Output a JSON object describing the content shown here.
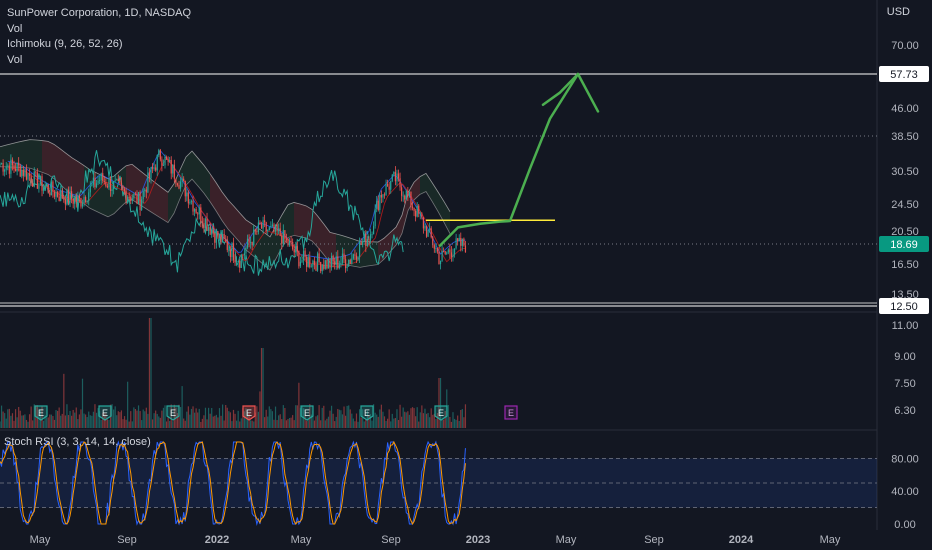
{
  "legend": {
    "title": "SunPower Corporation, 1D, NASDAQ",
    "line2": "Vol",
    "line3": "Ichimoku (9, 26, 52, 26)",
    "line4": "Vol"
  },
  "currency_label": "USD",
  "stoch_label": "Stoch RSI (3, 3, 14, 14, close)",
  "colors": {
    "background": "#131722",
    "up": "#26a69a",
    "down": "#ef5350",
    "drawing_green": "#4caf50",
    "horizontal_line": "#ffffff",
    "yellow_line": "#ffeb3b",
    "current_price_bg": "#089981",
    "stoch_k": "#2962ff",
    "stoch_d": "#ff9800",
    "earnings_green": "#26a69a",
    "earnings_red": "#ef5350",
    "earnings_purple": "#9c27b0"
  },
  "chart_data": [
    {
      "type": "candlestick",
      "title": "SunPower Corporation, 1D, NASDAQ",
      "y_scale": "log",
      "price_ticks": [
        "70.00",
        "46.00",
        "38.50",
        "30.50",
        "24.50",
        "20.50",
        "16.50",
        "13.50"
      ],
      "x_ticks": [
        "May",
        "Sep",
        "2022",
        "May",
        "Sep",
        "2023",
        "May",
        "Sep",
        "2024",
        "May"
      ],
      "horizontal_lines": [
        57.73,
        12.5
      ],
      "horizontal_line_labels": [
        "57.73",
        "12.50"
      ],
      "current_price": 18.69,
      "current_price_label": "18.69",
      "dotted_levels": [
        38.5,
        18.69
      ],
      "yellow_level": 22.0,
      "ichimoku_params": "9, 26, 52, 26",
      "projection_path_prices": [
        18.5,
        21.0,
        21.5,
        21.8,
        21.9,
        31.0,
        43.0,
        57.73
      ]
    },
    {
      "type": "bar",
      "title": "Vol",
      "price_axis_ticks": [
        "11.00",
        "9.00",
        "7.50",
        "6.30"
      ],
      "earnings_markers": [
        {
          "label": "E",
          "kind": "green"
        },
        {
          "label": "E",
          "kind": "green"
        },
        {
          "label": "E",
          "kind": "green"
        },
        {
          "label": "E",
          "kind": "red"
        },
        {
          "label": "E",
          "kind": "green"
        },
        {
          "label": "E",
          "kind": "green"
        },
        {
          "label": "E",
          "kind": "green"
        },
        {
          "label": "E",
          "kind": "purple"
        }
      ]
    },
    {
      "type": "line",
      "title": "Stoch RSI (3, 3, 14, 14, close)",
      "ylim": [
        0,
        100
      ],
      "y_ticks": [
        "80.00",
        "40.00",
        "0.00"
      ],
      "bands": [
        20,
        50,
        80
      ]
    }
  ]
}
